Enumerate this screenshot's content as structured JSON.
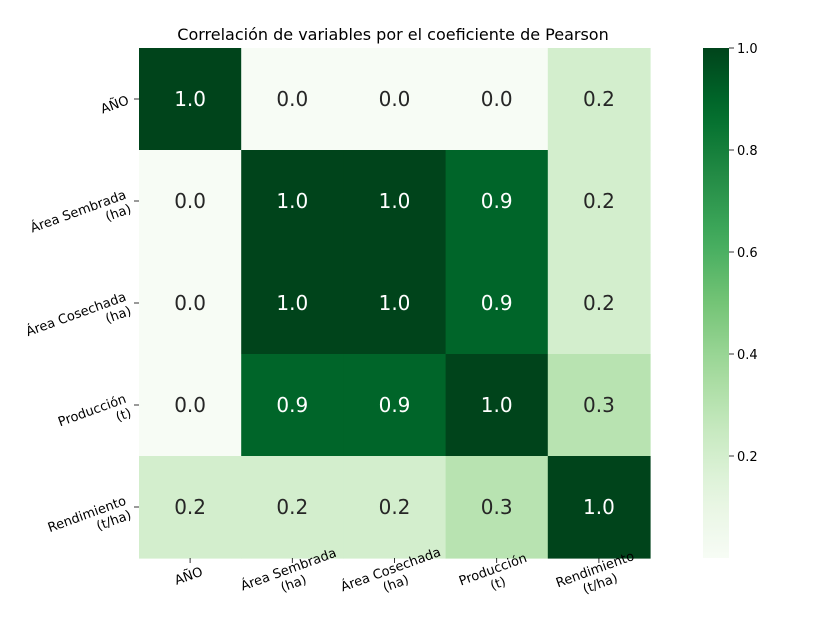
{
  "chart_data": {
    "type": "heatmap",
    "title": "Correlación de variables por el coeficiente de Pearson",
    "x_labels": [
      [
        "AÑO"
      ],
      [
        "Área Sembrada",
        "(ha)"
      ],
      [
        "Área Cosechada",
        "(ha)"
      ],
      [
        "Producción",
        "(t)"
      ],
      [
        "Rendimiento",
        "(t/ha)"
      ]
    ],
    "y_labels": [
      [
        "AÑO"
      ],
      [
        "Área Sembrada",
        "(ha)"
      ],
      [
        "Área Cosechada",
        "(ha)"
      ],
      [
        "Producción",
        "(t)"
      ],
      [
        "Rendimiento",
        "(t/ha)"
      ]
    ],
    "values": [
      [
        1.0,
        0.0,
        0.0,
        0.0,
        0.2
      ],
      [
        0.0,
        1.0,
        1.0,
        0.9,
        0.2
      ],
      [
        0.0,
        1.0,
        1.0,
        0.9,
        0.2
      ],
      [
        0.0,
        0.9,
        0.9,
        1.0,
        0.3
      ],
      [
        0.2,
        0.2,
        0.2,
        0.3,
        1.0
      ]
    ],
    "display_values": [
      [
        "1.0",
        "0.0",
        "0.0",
        "0.0",
        "0.2"
      ],
      [
        "0.0",
        "1.0",
        "1.0",
        "0.9",
        "0.2"
      ],
      [
        "0.0",
        "1.0",
        "1.0",
        "0.9",
        "0.2"
      ],
      [
        "0.0",
        "0.9",
        "0.9",
        "1.0",
        "0.3"
      ],
      [
        "0.2",
        "0.2",
        "0.2",
        "0.3",
        "1.0"
      ]
    ],
    "colormap": "Greens",
    "color_range": [
      0.0,
      1.0
    ],
    "colorbar_ticks": [
      "0.2",
      "0.4",
      "0.6",
      "0.8",
      "1.0"
    ],
    "colorbar_tick_values": [
      0.2,
      0.4,
      0.6,
      0.8,
      1.0
    ],
    "colors": {
      "low": "#f7fcf5",
      "high": "#00441b",
      "text_dark": "#262626",
      "text_light": "#ffffff"
    }
  }
}
